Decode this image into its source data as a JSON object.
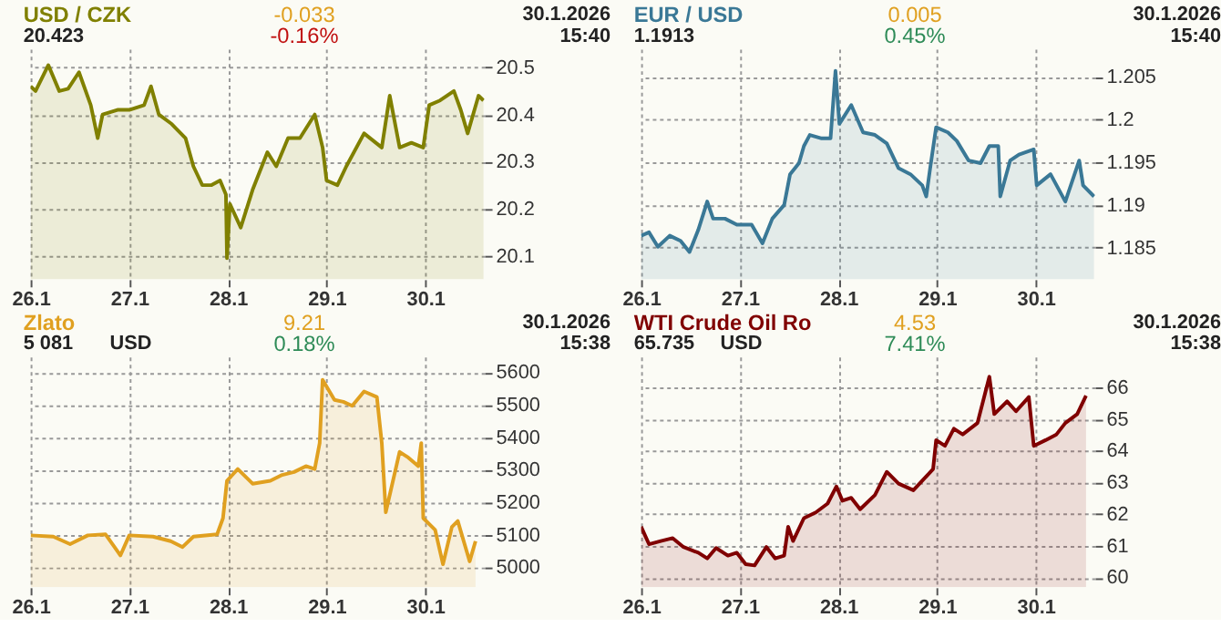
{
  "chart_data": [
    {
      "type": "area",
      "title": "USD / CZK",
      "subtitle": "20.423",
      "annotations": [
        "-0.033",
        "-0.16%",
        "30.1.2026",
        "15:40"
      ],
      "x": [
        "2026-01-26T00:00",
        "2026-01-26T01:12",
        "2026-01-26T04:19",
        "2026-01-26T06:58",
        "2026-01-26T09:07",
        "2026-01-26T11:46",
        "2026-01-26T14:38",
        "2026-01-26T16:19",
        "2026-01-26T17:31",
        "2026-01-26T21:07",
        "2026-01-27T00:00",
        "2026-01-27T03:36",
        "2026-01-27T05:17",
        "2026-01-27T07:12",
        "2026-01-27T10:19",
        "2026-01-27T13:41",
        "2026-01-27T15:36",
        "2026-01-27T17:46",
        "2026-01-27T19:55",
        "2026-01-27T22:05",
        "2026-01-27T23:31",
        "2026-01-27T23:46",
        "2026-01-28T00:29",
        "2026-01-28T03:07",
        "2026-01-28T06:00",
        "2026-01-28T09:36",
        "2026-01-28T11:46",
        "2026-01-28T14:38",
        "2026-01-28T17:31",
        "2026-01-28T21:07",
        "2026-01-28T23:02",
        "2026-01-29T00:00",
        "2026-01-29T02:38",
        "2026-01-29T04:48",
        "2026-01-29T09:07",
        "2026-01-29T13:26",
        "2026-01-29T15:22",
        "2026-01-29T17:46",
        "2026-01-29T20:38",
        "2026-01-29T23:31",
        "2026-01-30T00:58",
        "2026-01-30T03:36",
        "2026-01-30T06:58",
        "2026-01-30T08:38",
        "2026-01-30T10:19",
        "2026-01-30T12:58",
        "2026-01-30T14:10"
      ],
      "series": [
        {
          "color": "#808000",
          "values": [
            20.46,
            20.45,
            20.505,
            20.45,
            20.455,
            20.49,
            20.42,
            20.35,
            20.4,
            20.41,
            20.41,
            20.42,
            20.46,
            20.4,
            20.38,
            20.35,
            20.29,
            20.25,
            20.25,
            20.26,
            20.23,
            20.095,
            20.21,
            20.16,
            20.24,
            20.32,
            20.29,
            20.35,
            20.35,
            20.4,
            20.33,
            20.26,
            20.25,
            20.29,
            20.36,
            20.33,
            20.44,
            20.33,
            20.34,
            20.33,
            20.42,
            20.43,
            20.45,
            20.41,
            20.36,
            20.44,
            20.43
          ]
        }
      ],
      "xlim": [
        "2026-01-26T00:00",
        "2026-01-30T14:24"
      ],
      "xticks": [
        {
          "value": "2026-01-26",
          "label": "26.1"
        },
        {
          "value": "2026-01-27",
          "label": "27.1"
        },
        {
          "value": "2026-01-28",
          "label": "28.1"
        },
        {
          "value": "2026-01-29",
          "label": "29.1"
        },
        {
          "value": "2026-01-30",
          "label": "30.1"
        }
      ],
      "ylim": [
        20.05,
        20.54
      ],
      "yticks": [
        20.1,
        20.2,
        20.3,
        20.4,
        20.5
      ],
      "grid": true
    },
    {
      "type": "area",
      "title": "EUR / USD",
      "subtitle": "1.1913",
      "annotations": [
        "0.005",
        "0.45%",
        "30.1.2026",
        "15:40"
      ],
      "x": [
        "2026-01-26T00:00",
        "2026-01-26T01:55",
        "2026-01-26T04:05",
        "2026-01-26T06:58",
        "2026-01-26T09:36",
        "2026-01-26T11:46",
        "2026-01-26T13:55",
        "2026-01-26T16:05",
        "2026-01-26T17:31",
        "2026-01-26T20:24",
        "2026-01-26T23:17",
        "2026-01-27T02:53",
        "2026-01-27T05:31",
        "2026-01-27T07:55",
        "2026-01-27T10:48",
        "2026-01-27T12:14",
        "2026-01-27T14:24",
        "2026-01-27T15:36",
        "2026-01-27T17:02",
        "2026-01-27T19:55",
        "2026-01-27T22:05",
        "2026-01-27T23:17",
        "2026-01-28T00:14",
        "2026-01-28T03:07",
        "2026-01-28T06:00",
        "2026-01-28T08:53",
        "2026-01-28T11:46",
        "2026-01-28T14:38",
        "2026-01-28T17:31",
        "2026-01-28T20:24",
        "2026-01-28T21:22",
        "2026-01-28T22:19",
        "2026-01-28T23:46",
        "2026-01-29T02:38",
        "2026-01-29T04:48",
        "2026-01-29T07:41",
        "2026-01-29T10:34",
        "2026-01-29T12:43",
        "2026-01-29T14:53",
        "2026-01-29T15:22",
        "2026-01-29T17:46",
        "2026-01-29T19:55",
        "2026-01-29T23:31",
        "2026-01-30T00:14",
        "2026-01-30T03:36",
        "2026-01-30T07:12",
        "2026-01-30T10:34",
        "2026-01-30T11:31",
        "2026-01-30T14:10"
      ],
      "series": [
        {
          "color": "#3a7896",
          "values": [
            1.1864,
            1.1868,
            1.1851,
            1.1864,
            1.1858,
            1.1845,
            1.1871,
            1.1904,
            1.1884,
            1.1884,
            1.1877,
            1.1877,
            1.1855,
            1.1884,
            1.19,
            1.1936,
            1.1949,
            1.1969,
            1.1982,
            1.1978,
            1.1978,
            1.2057,
            1.1995,
            1.2017,
            1.1985,
            1.1982,
            1.1972,
            1.1943,
            1.1936,
            1.1923,
            1.191,
            1.1943,
            1.1991,
            1.1985,
            1.1975,
            1.1952,
            1.1949,
            1.1969,
            1.1969,
            1.191,
            1.1952,
            1.1959,
            1.1965,
            1.1923,
            1.1936,
            1.1904,
            1.1952,
            1.1923,
            1.191
          ]
        }
      ],
      "xlim": [
        "2026-01-26T00:00",
        "2026-01-30T14:24"
      ],
      "xticks": [
        {
          "value": "2026-01-26",
          "label": "26.1"
        },
        {
          "value": "2026-01-27",
          "label": "27.1"
        },
        {
          "value": "2026-01-28",
          "label": "28.1"
        },
        {
          "value": "2026-01-29",
          "label": "29.1"
        },
        {
          "value": "2026-01-30",
          "label": "30.1"
        }
      ],
      "ylim": [
        1.1813,
        1.2083
      ],
      "yticks": [
        1.185,
        1.19,
        1.195,
        1.2,
        1.205
      ],
      "grid": true
    },
    {
      "type": "area",
      "title": "Zlato",
      "subtitle": "5 081",
      "ylabel": "USD",
      "annotations": [
        "9.21",
        "0.18%",
        "30.1.2026",
        "15:38"
      ],
      "x": [
        "2026-01-26T00:00",
        "2026-01-26T05:31",
        "2026-01-26T09:36",
        "2026-01-26T13:55",
        "2026-01-26T18:14",
        "2026-01-26T20:24",
        "2026-01-26T21:50",
        "2026-01-27T00:00",
        "2026-01-27T05:46",
        "2026-01-27T10:05",
        "2026-01-27T12:58",
        "2026-01-27T15:36",
        "2026-01-27T21:22",
        "2026-01-27T22:48",
        "2026-01-27T23:46",
        "2026-01-28T02:24",
        "2026-01-28T06:00",
        "2026-01-28T10:19",
        "2026-01-28T13:12",
        "2026-01-28T16:05",
        "2026-01-28T18:58",
        "2026-01-28T21:07",
        "2026-01-28T22:19",
        "2026-01-28T23:02",
        "2026-01-29T01:55",
        "2026-01-29T04:05",
        "2026-01-29T06:14",
        "2026-01-29T09:07",
        "2026-01-29T12:14",
        "2026-01-29T13:26",
        "2026-01-29T14:24",
        "2026-01-29T16:19",
        "2026-01-29T17:46",
        "2026-01-29T19:55",
        "2026-01-29T22:19",
        "2026-01-29T23:02",
        "2026-01-29T23:31",
        "2026-01-30T02:24",
        "2026-01-30T04:19",
        "2026-01-30T06:29",
        "2026-01-30T07:55",
        "2026-01-30T10:48",
        "2026-01-30T12:14"
      ],
      "series": [
        {
          "color": "#e0a020",
          "values": [
            5098,
            5094,
            5071,
            5098,
            5101,
            5062,
            5036,
            5098,
            5094,
            5080,
            5062,
            5094,
            5101,
            5151,
            5266,
            5302,
            5257,
            5266,
            5284,
            5293,
            5311,
            5302,
            5382,
            5577,
            5515,
            5509,
            5497,
            5541,
            5524,
            5382,
            5169,
            5275,
            5355,
            5337,
            5311,
            5382,
            5151,
            5115,
            5009,
            5124,
            5142,
            5018,
            5080
          ]
        }
      ],
      "xlim": [
        "2026-01-26T00:00",
        "2026-01-30T14:24"
      ],
      "xticks": [
        {
          "value": "2026-01-26",
          "label": "26.1"
        },
        {
          "value": "2026-01-27",
          "label": "27.1"
        },
        {
          "value": "2026-01-28",
          "label": "28.1"
        },
        {
          "value": "2026-01-29",
          "label": "29.1"
        },
        {
          "value": "2026-01-30",
          "label": "30.1"
        }
      ],
      "ylim": [
        4938,
        5648
      ],
      "yticks": [
        5000,
        5100,
        5200,
        5300,
        5400,
        5500,
        5600
      ],
      "grid": true
    },
    {
      "type": "area",
      "title": "WTI Crude Oil Ro",
      "subtitle": "65.735",
      "ylabel": "USD",
      "annotations": [
        "4.53",
        "7.41%",
        "30.1.2026",
        "15:38"
      ],
      "x": [
        "2026-01-26T00:00",
        "2026-01-26T01:55",
        "2026-01-26T04:48",
        "2026-01-26T07:41",
        "2026-01-26T10:19",
        "2026-01-26T13:55",
        "2026-01-26T16:05",
        "2026-01-26T18:14",
        "2026-01-26T21:07",
        "2026-01-26T23:17",
        "2026-01-27T01:26",
        "2026-01-27T03:36",
        "2026-01-27T06:29",
        "2026-01-27T08:38",
        "2026-01-27T10:48",
        "2026-01-27T11:46",
        "2026-01-27T12:58",
        "2026-01-27T15:36",
        "2026-01-27T18:29",
        "2026-01-27T21:22",
        "2026-01-27T23:31",
        "2026-01-28T00:58",
        "2026-01-28T03:07",
        "2026-01-28T05:17",
        "2026-01-28T08:53",
        "2026-01-28T11:46",
        "2026-01-28T14:38",
        "2026-01-28T18:14",
        "2026-01-28T20:24",
        "2026-01-28T23:02",
        "2026-01-28T23:46",
        "2026-01-29T01:55",
        "2026-01-29T04:05",
        "2026-01-29T06:14",
        "2026-01-29T09:50",
        "2026-01-29T12:43",
        "2026-01-29T13:55",
        "2026-01-29T17:02",
        "2026-01-29T19:12",
        "2026-01-29T22:19",
        "2026-01-29T23:31",
        "2026-01-30T02:24",
        "2026-01-30T05:02",
        "2026-01-30T07:12",
        "2026-01-30T10:05",
        "2026-01-30T12:14"
      ],
      "series": [
        {
          "color": "#800000",
          "values": [
            61.6,
            61.05,
            61.15,
            61.24,
            60.96,
            60.78,
            60.6,
            60.93,
            60.69,
            60.78,
            60.42,
            60.38,
            60.96,
            60.6,
            60.69,
            61.6,
            61.15,
            61.87,
            62.05,
            62.33,
            62.87,
            62.42,
            62.51,
            62.15,
            62.6,
            63.33,
            62.96,
            62.75,
            63.05,
            63.42,
            64.33,
            64.15,
            64.69,
            64.51,
            64.87,
            66.33,
            65.15,
            65.55,
            65.24,
            65.69,
            64.15,
            64.33,
            64.51,
            64.87,
            65.15,
            65.73
          ]
        }
      ],
      "xlim": [
        "2026-01-26T00:00",
        "2026-01-30T14:24"
      ],
      "xticks": [
        {
          "value": "2026-01-26",
          "label": "26.1"
        },
        {
          "value": "2026-01-27",
          "label": "27.1"
        },
        {
          "value": "2026-01-28",
          "label": "28.1"
        },
        {
          "value": "2026-01-29",
          "label": "29.1"
        },
        {
          "value": "2026-01-30",
          "label": "30.1"
        }
      ],
      "ylim": [
        59.69,
        66.96
      ],
      "yticks": [
        60,
        61,
        62,
        63,
        64,
        65,
        66
      ],
      "grid": true
    }
  ]
}
